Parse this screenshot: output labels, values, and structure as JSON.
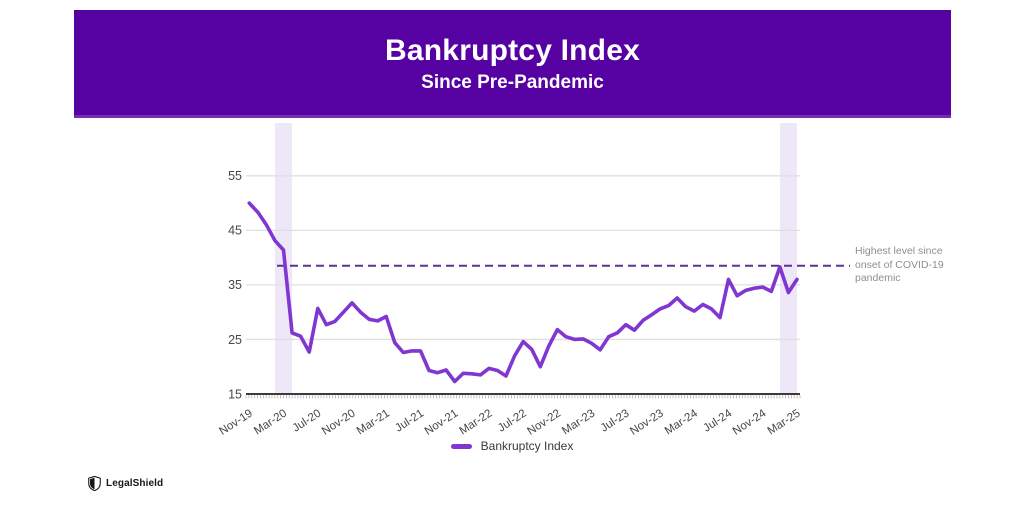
{
  "header": {
    "title": "Bankruptcy Index",
    "subtitle": "Since Pre-Pandemic"
  },
  "chart_data": {
    "type": "line",
    "title": "Bankruptcy Index",
    "subtitle": "Since Pre-Pandemic",
    "categories": [
      "Nov-19",
      "Dec-19",
      "Jan-20",
      "Feb-20",
      "Mar-20",
      "Apr-20",
      "May-20",
      "Jun-20",
      "Jul-20",
      "Aug-20",
      "Sep-20",
      "Oct-20",
      "Nov-20",
      "Dec-20",
      "Jan-21",
      "Feb-21",
      "Mar-21",
      "Apr-21",
      "May-21",
      "Jun-21",
      "Jul-21",
      "Aug-21",
      "Sep-21",
      "Oct-21",
      "Nov-21",
      "Dec-21",
      "Jan-22",
      "Feb-22",
      "Mar-22",
      "Apr-22",
      "May-22",
      "Jun-22",
      "Jul-22",
      "Aug-22",
      "Sep-22",
      "Oct-22",
      "Nov-22",
      "Dec-22",
      "Jan-23",
      "Feb-23",
      "Mar-23",
      "Apr-23",
      "May-23",
      "Jun-23",
      "Jul-23",
      "Aug-23",
      "Sep-23",
      "Oct-23",
      "Nov-23",
      "Dec-23",
      "Jan-24",
      "Feb-24",
      "Mar-24",
      "Apr-24",
      "May-24",
      "Jun-24",
      "Jul-24",
      "Aug-24",
      "Sep-24",
      "Oct-24",
      "Nov-24",
      "Dec-24",
      "Jan-25",
      "Feb-25",
      "Mar-25"
    ],
    "series": [
      {
        "name": "Bankruptcy Index",
        "values": [
          50.0,
          48.3,
          46.0,
          43.1,
          41.4,
          26.2,
          25.6,
          22.7,
          30.7,
          27.7,
          28.3,
          30.0,
          31.7,
          30.0,
          28.7,
          28.4,
          29.2,
          24.4,
          22.6,
          22.9,
          22.9,
          19.3,
          18.9,
          19.4,
          17.3,
          18.8,
          18.7,
          18.5,
          19.7,
          19.3,
          18.3,
          22.0,
          24.6,
          23.2,
          20.0,
          23.8,
          26.8,
          25.5,
          25.0,
          25.1,
          24.3,
          23.1,
          25.5,
          26.2,
          27.7,
          26.7,
          28.5,
          29.5,
          30.6,
          31.2,
          32.6,
          31.0,
          30.2,
          31.4,
          30.6,
          29.0,
          36.0,
          33.0,
          34.0,
          34.4,
          34.6,
          33.8,
          38.3,
          33.6,
          36.0
        ]
      }
    ],
    "xlabel": "",
    "ylabel": "",
    "ylim": [
      15,
      57
    ],
    "yticks": [
      15,
      25,
      35,
      45,
      55
    ],
    "x_tick_step": 4,
    "x_tick_labels": [
      "Nov-19",
      "Mar-20",
      "Jul-20",
      "Nov-20",
      "Mar-21",
      "Jul-21",
      "Nov-21",
      "Mar-22",
      "Jul-22",
      "Nov-22",
      "Mar-23",
      "Jul-23",
      "Nov-23",
      "Mar-24",
      "Jul-24",
      "Nov-24",
      "Mar-25"
    ],
    "grid": true,
    "legend_position": "bottom",
    "reference_line": {
      "value": 38.5,
      "style": "dashed",
      "label": "Highest level since onset of COVID-19 pandemic"
    },
    "highlight_bands": [
      {
        "from": "Feb-20",
        "to": "Apr-20"
      },
      {
        "from": "Jan-25",
        "to": "Mar-25"
      }
    ],
    "colors": {
      "header_background": "#5601A2",
      "line": "#8037D1",
      "reference": "#5F3192",
      "band": "#EDE7F8",
      "grid": "#DFDFDF",
      "axis": "#3B3B3B",
      "tick": "#B0B0B0",
      "axis_label": "#474747",
      "annotation_text": "#8F8F8F"
    }
  },
  "annotation": {
    "text": "Highest level since onset of COVID-19 pandemic"
  },
  "legend": {
    "label": "Bankruptcy Index"
  },
  "footer": {
    "brand": "LegalShield"
  }
}
